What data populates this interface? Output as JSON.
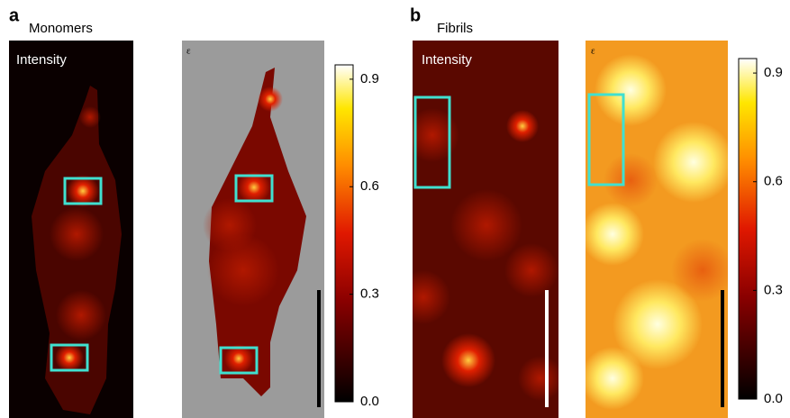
{
  "panels": [
    {
      "label": "a",
      "title": "Monomers",
      "images": [
        {
          "label": "Intensity"
        },
        {
          "label": "ε"
        }
      ],
      "colorbar": {
        "lim": [
          0,
          0.94
        ],
        "ticks": [
          {
            "value": 0,
            "label": "0.0"
          },
          {
            "value": 0.3,
            "label": "0.3"
          },
          {
            "value": 0.6,
            "label": "0.6"
          },
          {
            "value": 0.9,
            "label": "0.9"
          }
        ]
      }
    },
    {
      "label": "b",
      "title": "Fibrils",
      "images": [
        {
          "label": "Intensity"
        },
        {
          "label": "ε"
        }
      ],
      "colorbar": {
        "lim": [
          0,
          0.94
        ],
        "ticks": [
          {
            "value": 0,
            "label": "0.0"
          },
          {
            "value": 0.3,
            "label": "0.3"
          },
          {
            "value": 0.6,
            "label": "0.6"
          },
          {
            "value": 0.9,
            "label": "0.9"
          }
        ]
      }
    }
  ]
}
